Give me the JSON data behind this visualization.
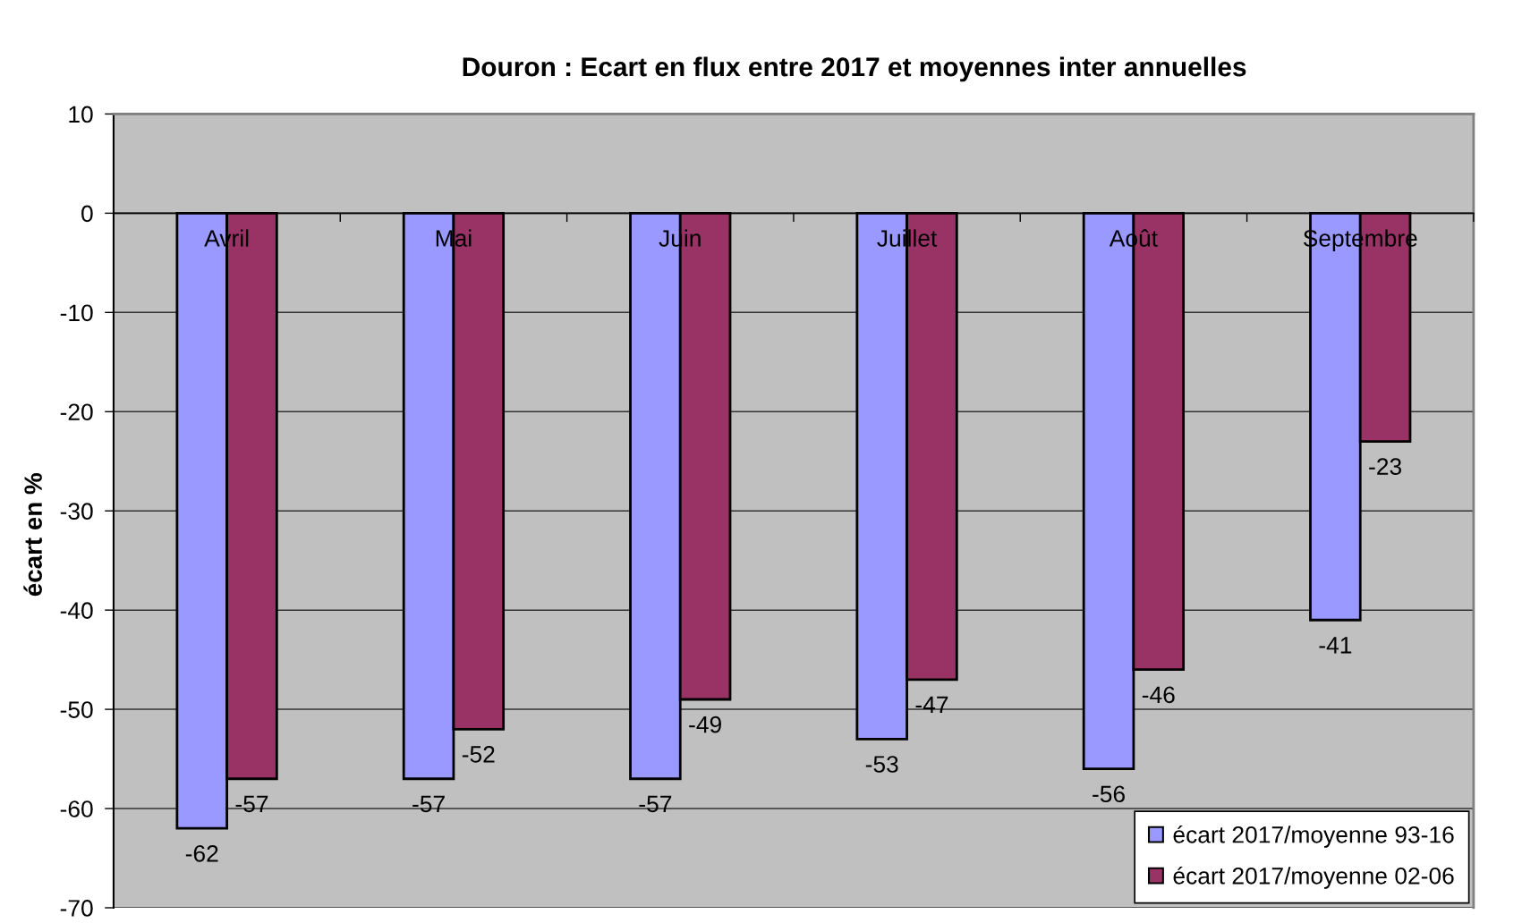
{
  "chart_data": {
    "type": "bar",
    "title": "Douron : Ecart en flux entre 2017 et moyennes inter annuelles",
    "ylabel": "écart en %",
    "categories": [
      "Avril",
      "Mai",
      "Juin",
      "Juillet",
      "Août",
      "Septembre"
    ],
    "series": [
      {
        "name": "écart 2017/moyenne 93-16",
        "color": "#9999ff",
        "values": [
          -62,
          -57,
          -57,
          -53,
          -56,
          -41
        ]
      },
      {
        "name": "écart 2017/moyenne 02-06",
        "color": "#993366",
        "values": [
          -57,
          -52,
          -49,
          -47,
          -46,
          -23
        ]
      }
    ],
    "ylim": [
      -70,
      10
    ],
    "yticks": [
      -70,
      -60,
      -50,
      -40,
      -30,
      -20,
      -10,
      0,
      10
    ],
    "grid": "y",
    "legend": "bottom right",
    "data_labels": true
  }
}
